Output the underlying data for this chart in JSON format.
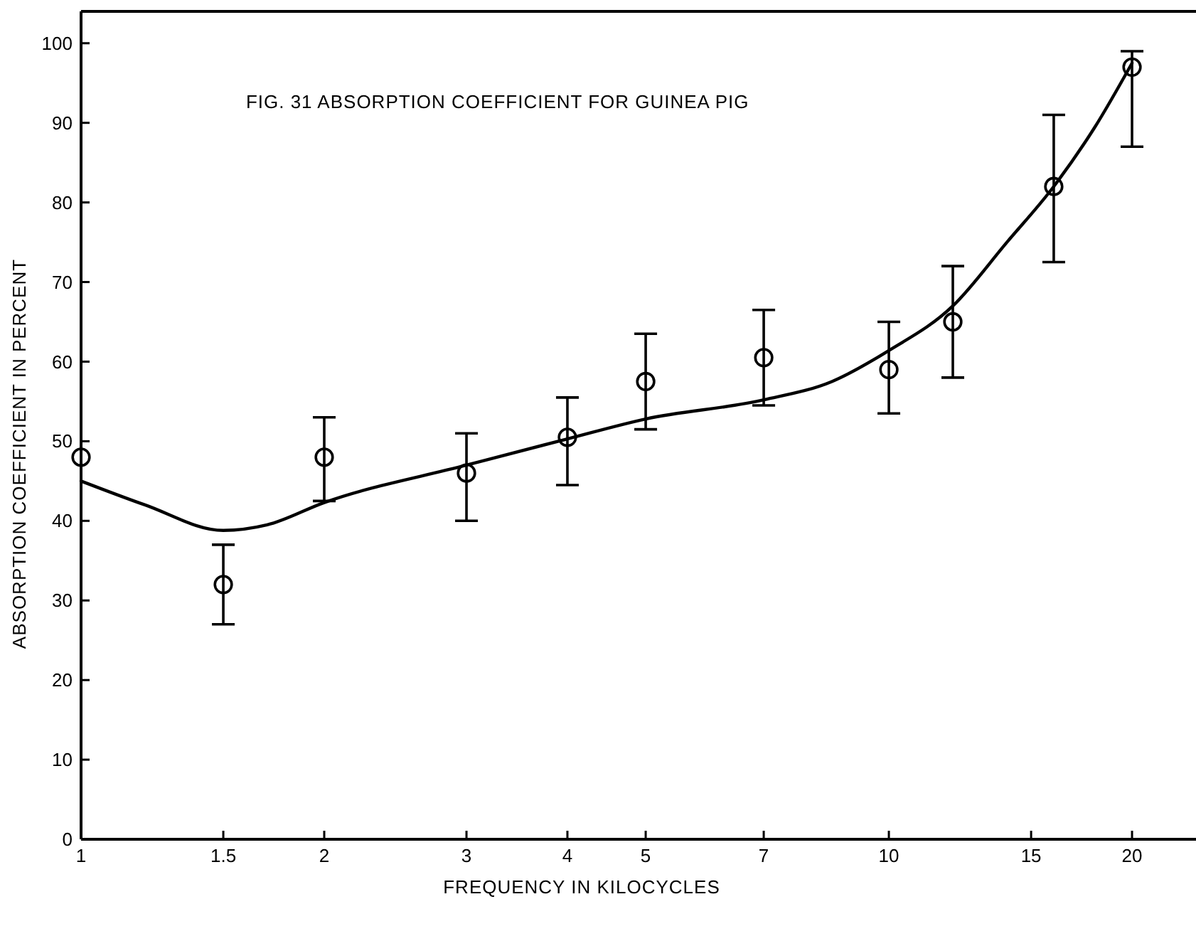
{
  "chart_data": {
    "type": "scatter",
    "title": "FIG. 31 ABSORPTION COEFFICIENT FOR GUINEA PIG",
    "xlabel": "FREQUENCY IN KILOCYCLES",
    "ylabel": "ABSORPTION COEFFICIENT IN PERCENT",
    "log": "x",
    "xlim": [
      1,
      24
    ],
    "xticks": [
      1,
      1.5,
      2,
      3,
      4,
      5,
      7,
      10,
      15,
      20
    ],
    "ylim": [
      0,
      104
    ],
    "yticks": [
      0,
      10,
      20,
      30,
      40,
      50,
      60,
      70,
      80,
      90,
      100
    ],
    "grid": false,
    "series": [
      {
        "marker": "circle",
        "color": "#000000",
        "x": [
          1,
          1.5,
          2,
          3,
          4,
          5,
          7,
          10,
          12,
          16,
          20
        ],
        "values": [
          48,
          32,
          48,
          46,
          50.5,
          57.5,
          60.5,
          59,
          65,
          82,
          97
        ],
        "errors": [
          null,
          [
            27,
            37
          ],
          [
            42.5,
            53
          ],
          [
            40,
            51
          ],
          [
            44.5,
            55.5
          ],
          [
            51.5,
            63.5
          ],
          [
            54.5,
            66.5
          ],
          [
            53.5,
            65
          ],
          [
            58,
            72
          ],
          [
            72.5,
            91
          ],
          [
            87,
            99
          ]
        ]
      },
      {
        "type": "line",
        "color": "#000000",
        "line_style": "solid",
        "x": [
          1,
          1.2,
          1.5,
          1.7,
          2,
          3,
          4,
          5,
          7,
          8.5,
          10,
          12,
          14,
          16,
          18,
          20
        ],
        "values": [
          45,
          42,
          38.8,
          39.5,
          42.3,
          47,
          50.3,
          52.8,
          55.2,
          57.5,
          61.4,
          67,
          75,
          82,
          89.5,
          97.5
        ]
      }
    ]
  }
}
